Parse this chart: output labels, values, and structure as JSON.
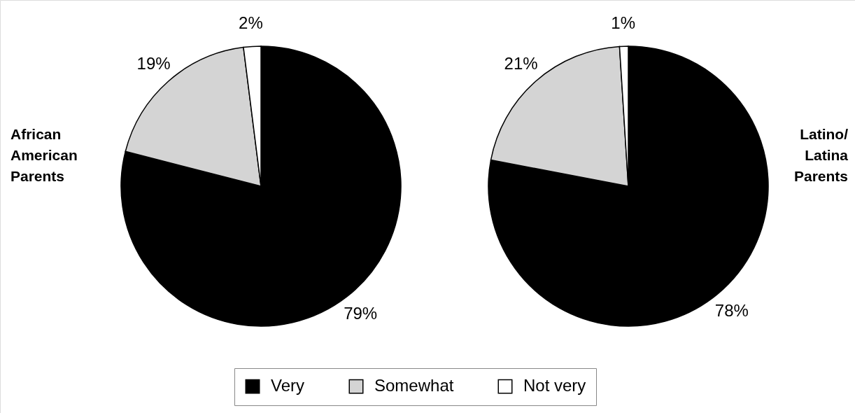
{
  "chart_data": {
    "type": "pie",
    "categories": [
      "Very",
      "Somewhat",
      "Not very"
    ],
    "colors": [
      "#000000",
      "#d4d4d4",
      "#ffffff"
    ],
    "legend": "bottom",
    "series": [
      {
        "name": "African\nAmerican\nParents",
        "values": [
          79,
          19,
          2
        ],
        "value_labels": [
          "79%",
          "19%",
          "2%"
        ]
      },
      {
        "name": "Latino/\nLatina\nParents",
        "values": [
          78,
          21,
          1
        ],
        "value_labels": [
          "78%",
          "21%",
          "1%"
        ]
      }
    ]
  }
}
